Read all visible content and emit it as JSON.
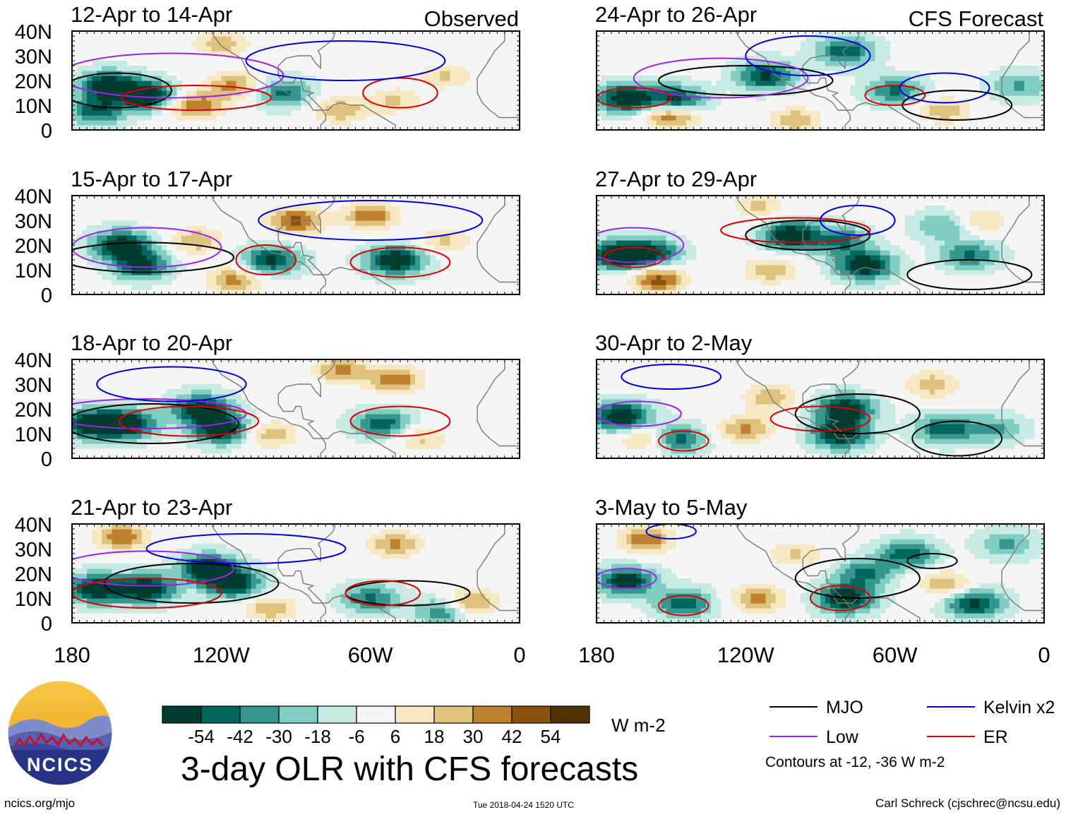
{
  "figure": {
    "title": "3-day OLR with CFS forecasts",
    "units": "W m-2",
    "contour_note": "Contours at -12, -36 W m-2",
    "site": "ncics.org/mjo",
    "timestamp": "Tue 2018-04-24 1520 UTC",
    "credit": "Carl Schreck (cjschrec@ncsu.edu)",
    "logo_text": "NCICS"
  },
  "columns": [
    {
      "label": "Observed"
    },
    {
      "label": "CFS Forecast"
    }
  ],
  "colorbar": {
    "labels": [
      "-54",
      "-42",
      "-30",
      "-18",
      "-6",
      "6",
      "18",
      "30",
      "42",
      "54"
    ],
    "colors": [
      "#003c30",
      "#01665e",
      "#35978f",
      "#80cdc1",
      "#c7eae5",
      "#f5f5f5",
      "#f6e8c3",
      "#dfc27d",
      "#bf812d",
      "#8c510a",
      "#543005"
    ]
  },
  "legend": [
    {
      "label": "MJO",
      "color": "#000000"
    },
    {
      "label": "Kelvin x2",
      "color": "#0000dd"
    },
    {
      "label": "Low",
      "color": "#a020f0"
    },
    {
      "label": "ER",
      "color": "#dd0000"
    }
  ],
  "chart_data": {
    "type": "heatmap",
    "variable": "3-day OLR anomaly with CFS filtered-wave contours",
    "x_ticks": [
      "180",
      "120W",
      "60W",
      "0"
    ],
    "y_ticks": [
      "40N",
      "30N",
      "20N",
      "10N",
      "0"
    ],
    "xlim": [
      -180,
      0
    ],
    "ylim": [
      0,
      40
    ],
    "contour_levels": [
      -12,
      -36
    ],
    "panels": [
      {
        "title": "12-Apr to 14-Apr",
        "group": "Observed",
        "blobs": [
          [
            -165,
            18,
            -1
          ],
          [
            -150,
            14,
            -1
          ],
          [
            -170,
            8,
            -0.7
          ],
          [
            -130,
            10,
            0.7
          ],
          [
            -115,
            18,
            0.6
          ],
          [
            -95,
            15,
            -0.6
          ],
          [
            -72,
            8,
            0.5
          ],
          [
            -50,
            12,
            0.4
          ],
          [
            -120,
            35,
            0.5
          ],
          [
            -30,
            22,
            0.4
          ]
        ],
        "waves": [
          {
            "w": "MJO",
            "lon": -162,
            "lat": 16,
            "rx": 22,
            "ry": 7
          },
          {
            "w": "Low",
            "lon": -140,
            "lat": 22,
            "rx": 45,
            "ry": 9
          },
          {
            "w": "ER",
            "lon": -130,
            "lat": 13,
            "rx": 30,
            "ry": 5
          },
          {
            "w": "ER",
            "lon": -48,
            "lat": 15,
            "rx": 15,
            "ry": 6
          },
          {
            "w": "Kelvin x2",
            "lon": -70,
            "lat": 28,
            "rx": 40,
            "ry": 8
          }
        ]
      },
      {
        "title": "15-Apr to 17-Apr",
        "group": "Observed",
        "blobs": [
          [
            -160,
            20,
            -1
          ],
          [
            -152,
            12,
            -0.8
          ],
          [
            -100,
            14,
            -0.8
          ],
          [
            -50,
            14,
            -1
          ],
          [
            -90,
            30,
            0.8
          ],
          [
            -60,
            32,
            0.7
          ],
          [
            -130,
            22,
            0.5
          ],
          [
            -115,
            6,
            0.6
          ],
          [
            -30,
            22,
            0.4
          ]
        ],
        "waves": [
          {
            "w": "MJO",
            "lon": -150,
            "lat": 15,
            "rx": 35,
            "ry": 6
          },
          {
            "w": "Low",
            "lon": -150,
            "lat": 19,
            "rx": 30,
            "ry": 8
          },
          {
            "w": "ER",
            "lon": -102,
            "lat": 14,
            "rx": 12,
            "ry": 6
          },
          {
            "w": "ER",
            "lon": -48,
            "lat": 13,
            "rx": 20,
            "ry": 6
          },
          {
            "w": "Kelvin x2",
            "lon": -60,
            "lat": 30,
            "rx": 45,
            "ry": 8
          }
        ]
      },
      {
        "title": "18-Apr to 20-Apr",
        "group": "Observed",
        "blobs": [
          [
            -172,
            14,
            -1
          ],
          [
            -158,
            14,
            -1
          ],
          [
            -128,
            20,
            -1
          ],
          [
            -120,
            12,
            -1
          ],
          [
            -55,
            14,
            -0.7
          ],
          [
            -72,
            36,
            0.6
          ],
          [
            -50,
            32,
            0.7
          ],
          [
            -40,
            8,
            0.4
          ],
          [
            -100,
            10,
            0.5
          ]
        ],
        "waves": [
          {
            "w": "MJO",
            "lon": -148,
            "lat": 14,
            "rx": 35,
            "ry": 8
          },
          {
            "w": "Low",
            "lon": -150,
            "lat": 18,
            "rx": 40,
            "ry": 6
          },
          {
            "w": "ER",
            "lon": -133,
            "lat": 15,
            "rx": 28,
            "ry": 6
          },
          {
            "w": "ER",
            "lon": -48,
            "lat": 15,
            "rx": 20,
            "ry": 6
          },
          {
            "w": "Kelvin x2",
            "lon": -140,
            "lat": 30,
            "rx": 30,
            "ry": 7
          }
        ]
      },
      {
        "title": "21-Apr to 23-Apr",
        "group": "Observed",
        "blobs": [
          [
            -170,
            14,
            -1
          ],
          [
            -150,
            14,
            -1
          ],
          [
            -125,
            22,
            -1
          ],
          [
            -115,
            16,
            -0.9
          ],
          [
            -60,
            10,
            -0.6
          ],
          [
            -30,
            5,
            -0.6
          ],
          [
            -160,
            35,
            0.7
          ],
          [
            -50,
            32,
            0.6
          ],
          [
            -20,
            8,
            0.7
          ],
          [
            -100,
            6,
            0.5
          ]
        ],
        "waves": [
          {
            "w": "MJO",
            "lon": -132,
            "lat": 16,
            "rx": 35,
            "ry": 8
          },
          {
            "w": "MJO",
            "lon": -45,
            "lat": 12,
            "rx": 25,
            "ry": 5
          },
          {
            "w": "Low",
            "lon": -150,
            "lat": 22,
            "rx": 35,
            "ry": 7
          },
          {
            "w": "ER",
            "lon": -150,
            "lat": 12,
            "rx": 30,
            "ry": 6
          },
          {
            "w": "ER",
            "lon": -55,
            "lat": 12,
            "rx": 15,
            "ry": 5
          },
          {
            "w": "Kelvin x2",
            "lon": -110,
            "lat": 30,
            "rx": 40,
            "ry": 6
          }
        ]
      },
      {
        "title": "24-Apr to 26-Apr",
        "group": "CFS Forecast",
        "blobs": [
          [
            -168,
            13,
            -1
          ],
          [
            -148,
            12,
            -0.9
          ],
          [
            -112,
            22,
            -0.8
          ],
          [
            -80,
            32,
            -0.7
          ],
          [
            -60,
            16,
            -0.6
          ],
          [
            -10,
            18,
            -0.4
          ],
          [
            -150,
            6,
            0.8
          ],
          [
            -100,
            4,
            0.5
          ],
          [
            -40,
            8,
            0.5
          ]
        ],
        "waves": [
          {
            "w": "MJO",
            "lon": -120,
            "lat": 20,
            "rx": 35,
            "ry": 6
          },
          {
            "w": "MJO",
            "lon": -35,
            "lat": 10,
            "rx": 22,
            "ry": 6
          },
          {
            "w": "Low",
            "lon": -130,
            "lat": 21,
            "rx": 35,
            "ry": 8
          },
          {
            "w": "ER",
            "lon": -165,
            "lat": 13,
            "rx": 15,
            "ry": 4
          },
          {
            "w": "ER",
            "lon": -60,
            "lat": 14,
            "rx": 12,
            "ry": 4
          },
          {
            "w": "Kelvin x2",
            "lon": -95,
            "lat": 30,
            "rx": 25,
            "ry": 8
          },
          {
            "w": "Kelvin x2",
            "lon": -40,
            "lat": 17,
            "rx": 18,
            "ry": 6
          }
        ]
      },
      {
        "title": "27-Apr to 29-Apr",
        "group": "CFS Forecast",
        "blobs": [
          [
            -172,
            16,
            -1
          ],
          [
            -158,
            17,
            -0.8
          ],
          [
            -102,
            24,
            -1
          ],
          [
            -72,
            12,
            -1
          ],
          [
            -82,
            22,
            -0.6
          ],
          [
            -30,
            16,
            -0.6
          ],
          [
            -40,
            28,
            -0.4
          ],
          [
            -155,
            6,
            0.8
          ],
          [
            -110,
            10,
            0.5
          ],
          [
            -115,
            36,
            0.4
          ],
          [
            -25,
            30,
            0.4
          ]
        ],
        "waves": [
          {
            "w": "MJO",
            "lon": -95,
            "lat": 24,
            "rx": 25,
            "ry": 6
          },
          {
            "w": "MJO",
            "lon": -30,
            "lat": 8,
            "rx": 25,
            "ry": 6
          },
          {
            "w": "Low",
            "lon": -165,
            "lat": 20,
            "rx": 20,
            "ry": 7
          },
          {
            "w": "ER",
            "lon": -165,
            "lat": 15,
            "rx": 12,
            "ry": 4
          },
          {
            "w": "ER",
            "lon": -100,
            "lat": 26,
            "rx": 30,
            "ry": 5
          },
          {
            "w": "Kelvin x2",
            "lon": -75,
            "lat": 30,
            "rx": 15,
            "ry": 6
          }
        ]
      },
      {
        "title": "30-Apr to 2-May",
        "group": "CFS Forecast",
        "blobs": [
          [
            -170,
            17,
            -1
          ],
          [
            -148,
            8,
            -0.7
          ],
          [
            -80,
            20,
            -1
          ],
          [
            -82,
            10,
            -1
          ],
          [
            -40,
            12,
            -0.7
          ],
          [
            -20,
            12,
            -0.4
          ],
          [
            -120,
            12,
            0.6
          ],
          [
            -110,
            25,
            0.5
          ],
          [
            -45,
            30,
            0.5
          ],
          [
            -160,
            8,
            0.5
          ]
        ],
        "waves": [
          {
            "w": "MJO",
            "lon": -75,
            "lat": 18,
            "rx": 25,
            "ry": 8
          },
          {
            "w": "MJO",
            "lon": -35,
            "lat": 8,
            "rx": 18,
            "ry": 7
          },
          {
            "w": "Low",
            "lon": -163,
            "lat": 18,
            "rx": 17,
            "ry": 5
          },
          {
            "w": "ER",
            "lon": -145,
            "lat": 7,
            "rx": 10,
            "ry": 4
          },
          {
            "w": "ER",
            "lon": -90,
            "lat": 16,
            "rx": 20,
            "ry": 5
          },
          {
            "w": "Kelvin x2",
            "lon": -150,
            "lat": 33,
            "rx": 20,
            "ry": 5
          }
        ]
      },
      {
        "title": "3-May to 5-May",
        "group": "CFS Forecast",
        "blobs": [
          [
            -168,
            17,
            -0.9
          ],
          [
            -145,
            8,
            -0.7
          ],
          [
            -80,
            10,
            -1
          ],
          [
            -72,
            20,
            -0.6
          ],
          [
            -55,
            28,
            -0.7
          ],
          [
            -28,
            8,
            -0.8
          ],
          [
            -15,
            32,
            -0.4
          ],
          [
            -160,
            34,
            0.7
          ],
          [
            -115,
            10,
            0.6
          ],
          [
            -40,
            16,
            0.5
          ],
          [
            -100,
            28,
            0.4
          ]
        ],
        "waves": [
          {
            "w": "MJO",
            "lon": -75,
            "lat": 18,
            "rx": 25,
            "ry": 8
          },
          {
            "w": "MJO",
            "lon": -45,
            "lat": 25,
            "rx": 10,
            "ry": 3
          },
          {
            "w": "Low",
            "lon": -168,
            "lat": 18,
            "rx": 12,
            "ry": 4
          },
          {
            "w": "ER",
            "lon": -145,
            "lat": 7,
            "rx": 10,
            "ry": 4
          },
          {
            "w": "ER",
            "lon": -82,
            "lat": 10,
            "rx": 12,
            "ry": 5
          },
          {
            "w": "Kelvin x2",
            "lon": -150,
            "lat": 37,
            "rx": 10,
            "ry": 3
          }
        ]
      }
    ]
  }
}
